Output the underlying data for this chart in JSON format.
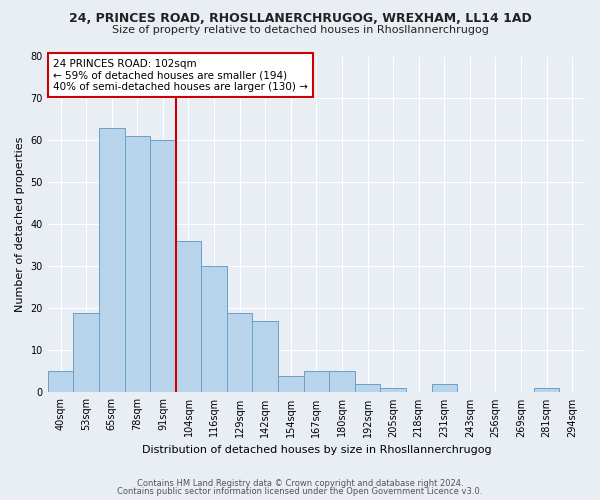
{
  "title_line1": "24, PRINCES ROAD, RHOSLLANERCHRUGOG, WREXHAM, LL14 1AD",
  "title_line2": "Size of property relative to detached houses in Rhosllannerchrugog",
  "xlabel": "Distribution of detached houses by size in Rhosllannerchrugog",
  "ylabel": "Number of detached properties",
  "categories": [
    "40sqm",
    "53sqm",
    "65sqm",
    "78sqm",
    "91sqm",
    "104sqm",
    "116sqm",
    "129sqm",
    "142sqm",
    "154sqm",
    "167sqm",
    "180sqm",
    "192sqm",
    "205sqm",
    "218sqm",
    "231sqm",
    "243sqm",
    "256sqm",
    "269sqm",
    "281sqm",
    "294sqm"
  ],
  "values": [
    5,
    19,
    63,
    61,
    60,
    36,
    30,
    19,
    17,
    4,
    5,
    5,
    2,
    1,
    0,
    2,
    0,
    0,
    0,
    1,
    0
  ],
  "bar_color": "#b8d4ea",
  "bar_edge_color": "#6aa0c8",
  "vline_color": "#cc0000",
  "annotation_line1": "24 PRINCES ROAD: 102sqm",
  "annotation_line2": "← 59% of detached houses are smaller (194)",
  "annotation_line3": "40% of semi-detached houses are larger (130) →",
  "box_facecolor": "#ffffff",
  "box_edgecolor": "#cc0000",
  "ylim": [
    0,
    80
  ],
  "yticks": [
    0,
    10,
    20,
    30,
    40,
    50,
    60,
    70,
    80
  ],
  "footnote1": "Contains HM Land Registry data © Crown copyright and database right 2024.",
  "footnote2": "Contains public sector information licensed under the Open Government Licence v3.0.",
  "bg_color": "#e8eef4",
  "grid_color": "#ffffff",
  "title1_fontsize": 9,
  "title2_fontsize": 8,
  "ylabel_fontsize": 8,
  "xlabel_fontsize": 8,
  "tick_fontsize": 7,
  "annot_fontsize": 7.5,
  "footnote_fontsize": 6
}
